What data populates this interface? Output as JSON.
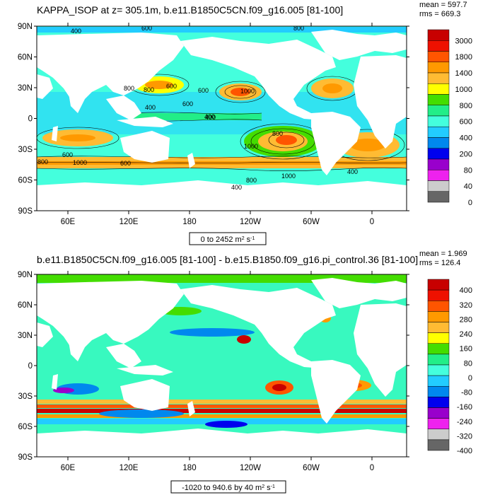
{
  "panels": [
    {
      "title": "KAPPA_ISOP at z= 305.1m, b.e11.B1850C5CN.f09_g16.005 [81-100]",
      "stats": [
        "mean = 597.7",
        "rms = 669.3"
      ],
      "range_label": {
        "text": "0 to 2452 m",
        "sup": "2",
        "after": " s",
        "sup2": "-1"
      },
      "lat_ticks": [
        "90N",
        "60N",
        "30N",
        "0",
        "30S",
        "60S",
        "90S"
      ],
      "lon_ticks": [
        "60E",
        "120E",
        "180",
        "120W",
        "60W",
        "0"
      ],
      "legend_labels": [
        "3000",
        "1800",
        "1400",
        "1000",
        "800",
        "600",
        "400",
        "200",
        "80",
        "40",
        "0"
      ],
      "legend_colors": [
        "#c80000",
        "#ee1100",
        "#ff5500",
        "#ff9900",
        "#ffbb33",
        "#ffff00",
        "#44dd00",
        "#22ee88",
        "#44ffdd",
        "#22ccff",
        "#0088ee",
        "#0000ee",
        "#9900cc",
        "#ee22ee",
        "#cccccc",
        "#666666"
      ],
      "contour_labels": [
        "400",
        "600",
        "800",
        "600",
        "800",
        "1000",
        "600",
        "400",
        "600",
        "400",
        "1000",
        "800",
        "600",
        "800",
        "1000",
        "600",
        "800",
        "1000",
        "400",
        "400",
        "400",
        "800"
      ]
    },
    {
      "title": "b.e11.B1850C5CN.f09_g16.005 [81-100] - b.e15.B1850.f09_g16.pi_control.36 [81-100]",
      "stats": [
        "mean = 1.969",
        "rms = 126.4"
      ],
      "range_label": {
        "text": "-1020 to 940.6 by 40 m",
        "sup": "2",
        "after": " s",
        "sup2": "-1"
      },
      "lat_ticks": [
        "90N",
        "60N",
        "30N",
        "0",
        "30S",
        "60S",
        "90S"
      ],
      "lon_ticks": [
        "60E",
        "120E",
        "180",
        "120W",
        "60W",
        "0"
      ],
      "legend_labels": [
        "400",
        "320",
        "280",
        "240",
        "160",
        "80",
        "0",
        "-80",
        "-160",
        "-240",
        "-320",
        "-400"
      ],
      "legend_colors": [
        "#c80000",
        "#ee1100",
        "#ff5500",
        "#ff9900",
        "#ffbb33",
        "#ffff00",
        "#44dd00",
        "#22ee88",
        "#44ffdd",
        "#22ccff",
        "#0088ee",
        "#0000ee",
        "#9900cc",
        "#ee22ee",
        "#cccccc",
        "#666666"
      ]
    }
  ]
}
